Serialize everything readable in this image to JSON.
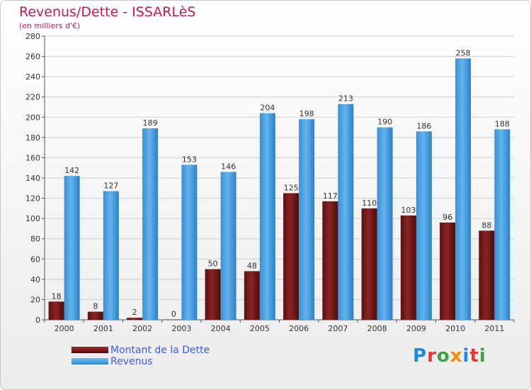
{
  "title": "Revenus/Dette - ISSARLèS",
  "subtitle": "(en milliers d'€)",
  "colors": {
    "debt": "#7a1c1c",
    "revenue": "#4aa3e6",
    "title": "#c2185b",
    "legend_text": "#3d5afe"
  },
  "logo": {
    "text": "Proxiti",
    "letters": [
      "P",
      "r",
      "o",
      "x",
      "i",
      "t",
      "i"
    ],
    "letter_colors": [
      "#1e88e5",
      "#e53935",
      "#43a047",
      "#fb8c00",
      "#1e88e5",
      "#e53935",
      "#43a047"
    ]
  },
  "legend": [
    {
      "label": "Montant de la Dette",
      "color": "#7a1c1c"
    },
    {
      "label": "Revenus",
      "color": "#4aa3e6"
    }
  ],
  "chart_data": {
    "type": "bar",
    "title": "Revenus/Dette - ISSARLèS",
    "subtitle": "(en milliers d'€)",
    "categories": [
      "2000",
      "2001",
      "2002",
      "2003",
      "2004",
      "2005",
      "2006",
      "2007",
      "2008",
      "2009",
      "2010",
      "2011"
    ],
    "series": [
      {
        "name": "Montant de la Dette",
        "values": [
          18,
          8,
          2,
          0,
          50,
          48,
          125,
          117,
          110,
          103,
          96,
          88
        ]
      },
      {
        "name": "Revenus",
        "values": [
          142,
          127,
          189,
          153,
          146,
          204,
          198,
          213,
          190,
          186,
          258,
          188
        ]
      }
    ],
    "ylim": [
      0,
      280
    ],
    "yticks": [
      "0",
      "20",
      "40",
      "60",
      "80",
      "100",
      "120",
      "140",
      "160",
      "180",
      "200",
      "220",
      "240",
      "260",
      "280"
    ],
    "grid": true,
    "legend_position": "bottom-left"
  }
}
